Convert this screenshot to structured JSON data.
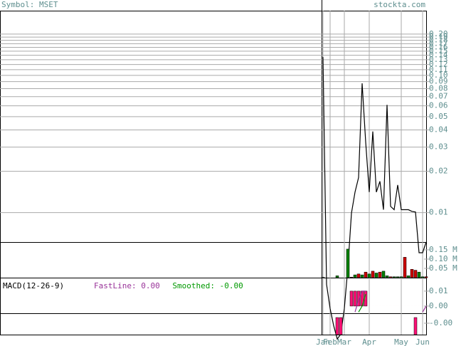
{
  "header": {
    "symbol": "Symbol: MSET",
    "source": "stockta.com"
  },
  "chart_data": [
    {
      "type": "line",
      "log_scale": true,
      "grid": true,
      "color": "#000000",
      "categories": [
        "Jan",
        null,
        "Feb",
        null,
        null,
        null,
        "Mar",
        null,
        null,
        null,
        null,
        null,
        null,
        "Apr",
        null,
        null,
        null,
        null,
        null,
        null,
        null,
        null,
        "May",
        null,
        null,
        null,
        null,
        null,
        "Jun",
        null
      ],
      "values": [
        0.136,
        0.003,
        0.002,
        0.0015,
        0.0012,
        0.0013,
        0.002,
        0.004,
        0.0099,
        0.0141,
        0.018,
        0.0875,
        0.0326,
        0.0141,
        0.039,
        0.0141,
        0.0169,
        0.0105,
        0.061,
        0.0111,
        0.0105,
        0.0159,
        0.0105,
        0.0105,
        0.0105,
        0.0102,
        0.0101,
        0.0051,
        0.0051,
        0.0061
      ],
      "ylim": [
        0.0061,
        0.296
      ],
      "yticks": [
        0.01,
        0.02,
        0.03,
        0.04,
        0.05,
        0.06,
        0.07,
        0.08,
        0.09,
        {
          "value": 0.1,
          "label": "0.10"
        },
        0.11,
        0.12,
        0.13,
        0.14,
        0.15,
        0.16,
        0.17,
        0.18,
        0.19,
        {
          "value": 0.2,
          "label": "0.20"
        }
      ]
    },
    {
      "type": "bar",
      "values": [
        2000,
        0,
        0,
        0,
        10000,
        0,
        0,
        154000,
        3000,
        15000,
        20000,
        15000,
        30000,
        20000,
        35000,
        25000,
        30000,
        35000,
        10000,
        5000,
        5000,
        5000,
        5000,
        110000,
        10000,
        45000,
        40000,
        30000,
        5000,
        5000
      ],
      "colors": [
        "#008000",
        "#008000",
        "#008000",
        "#008000",
        "#008000",
        "#008000",
        "#008000",
        "#008000",
        "#cc0000",
        "#008000",
        "#cc0000",
        "#008000",
        "#cc0000",
        "#008000",
        "#cc0000",
        "#008000",
        "#cc0000",
        "#008000",
        "#008000",
        "#cc0000",
        "#008000",
        "#008000",
        "#008000",
        "#cc0000",
        "#008000",
        "#cc0000",
        "#cc0000",
        "#008000",
        "#008000",
        "#cc0000"
      ],
      "ylim": [
        0,
        192000
      ],
      "yticks": [
        {
          "value": 50000,
          "label": "0.05 M"
        },
        {
          "value": 100000,
          "label": "0.10 M"
        },
        {
          "value": 150000,
          "label": "0.15 M"
        }
      ]
    },
    {
      "type": "line",
      "title": "MACD(12-26-9)",
      "series": [
        {
          "name": "FastLine: 0.00",
          "color": "#993399",
          "values": [
            null,
            null,
            null,
            null,
            null,
            null,
            null,
            null,
            null,
            -0.004,
            0.004,
            0.01,
            0.01,
            null,
            null,
            null,
            null,
            null,
            null,
            null,
            null,
            null,
            null,
            null,
            null,
            null,
            null,
            null,
            -0.004,
            0.0
          ]
        },
        {
          "name": "Smoothed: -0.00",
          "color": "#009900",
          "values": [
            null,
            null,
            null,
            null,
            null,
            null,
            null,
            null,
            null,
            null,
            -0.004,
            0.0,
            0.008,
            null,
            null,
            null,
            null,
            null,
            null,
            null,
            null,
            null,
            null,
            null,
            null,
            null,
            null,
            null,
            null,
            -0.004
          ]
        }
      ],
      "histogram": {
        "color": "#ff1177",
        "values": [
          0,
          0,
          0,
          0,
          0,
          0,
          0,
          0,
          0.01,
          0.01,
          0.01,
          0.01,
          0.01,
          0,
          0,
          0,
          0,
          0,
          0,
          0,
          0,
          0,
          0,
          0,
          0,
          0,
          0,
          0,
          0,
          0
        ]
      },
      "ylim": [
        -0.0048,
        0.019
      ],
      "yticks": [
        0.01,
        {
          "value": 0,
          "label": "0.00"
        }
      ]
    },
    {
      "type": "bar",
      "color": "#ff1177",
      "values": [
        0,
        0,
        0,
        0,
        -0.012,
        -0.012,
        0,
        0,
        0,
        0,
        0,
        0,
        0,
        0,
        0,
        0,
        0,
        0,
        0,
        0,
        0,
        0,
        0,
        0,
        0,
        0,
        -0.012,
        0,
        0,
        0
      ],
      "ylim": [
        -0.012,
        0.003
      ],
      "yticks": [
        {
          "value": -0.004,
          "label": "-0.00"
        }
      ]
    }
  ]
}
